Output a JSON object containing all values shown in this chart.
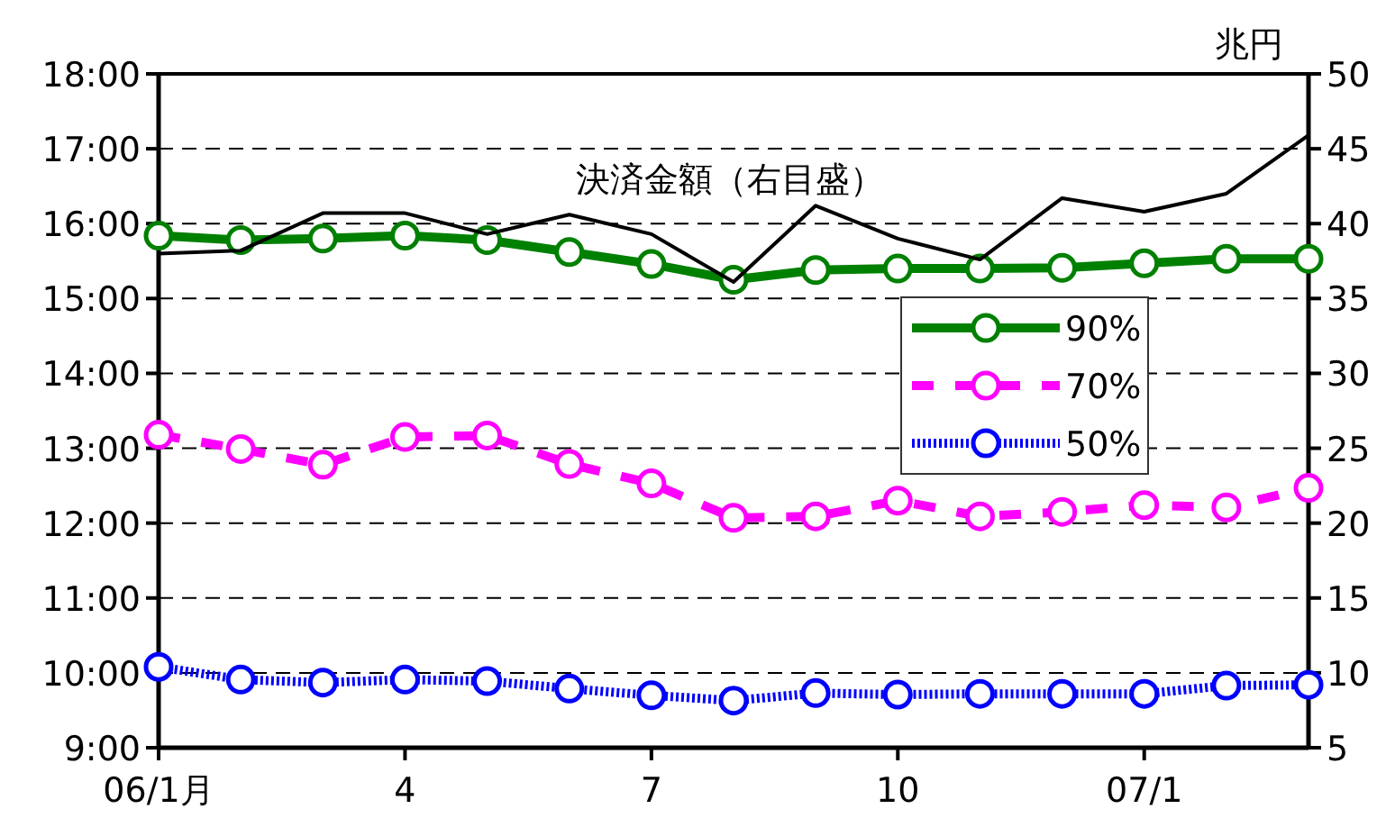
{
  "chart_data": {
    "type": "line",
    "categories": [
      "06/1月",
      null,
      null,
      "4",
      null,
      null,
      "7",
      null,
      null,
      "10",
      null,
      null,
      "07/1",
      null,
      null
    ],
    "ylim": [
      9,
      18
    ],
    "yticks": [
      {
        "value": 9,
        "label": "9:00"
      },
      {
        "value": 10,
        "label": "10:00"
      },
      {
        "value": 11,
        "label": "11:00"
      },
      {
        "value": 12,
        "label": "12:00"
      },
      {
        "value": 13,
        "label": "13:00"
      },
      {
        "value": 14,
        "label": "14:00"
      },
      {
        "value": 15,
        "label": "15:00"
      },
      {
        "value": 16,
        "label": "16:00"
      },
      {
        "value": 17,
        "label": "17:00"
      },
      {
        "value": 18,
        "label": "18:00"
      }
    ],
    "y2lim": [
      5,
      50
    ],
    "y2ticks": [
      5,
      10,
      15,
      20,
      25,
      30,
      35,
      40,
      45,
      50
    ],
    "y2label": "兆円",
    "grid": "y",
    "legend": "right",
    "marker": "circle",
    "series": [
      {
        "name": "決済金額（右目盛）",
        "axis": "y2",
        "color": "#000000",
        "marker": "none",
        "line_style": "solid",
        "values": [
          38.0,
          38.2,
          40.7,
          40.7,
          39.3,
          40.6,
          39.3,
          36.1,
          41.2,
          39.0,
          37.6,
          41.7,
          40.8,
          42.0,
          45.9
        ]
      },
      {
        "name": "90%",
        "color": "#008000",
        "line_style": "solid",
        "values": [
          15.84,
          15.78,
          15.8,
          15.84,
          15.78,
          15.62,
          15.46,
          15.25,
          15.38,
          15.4,
          15.4,
          15.41,
          15.47,
          15.53,
          15.53
        ]
      },
      {
        "name": "70%",
        "color": "#ff00ff",
        "line_style": "dashed",
        "values": [
          13.18,
          12.99,
          12.78,
          13.15,
          13.17,
          12.79,
          12.53,
          12.07,
          12.09,
          12.3,
          12.09,
          12.15,
          12.24,
          12.21,
          12.47
        ]
      },
      {
        "name": "50%",
        "color": "#0000ff",
        "line_style": "dotted",
        "values": [
          10.08,
          9.91,
          9.87,
          9.91,
          9.89,
          9.79,
          9.7,
          9.63,
          9.73,
          9.71,
          9.72,
          9.72,
          9.72,
          9.83,
          9.84
        ]
      }
    ]
  }
}
